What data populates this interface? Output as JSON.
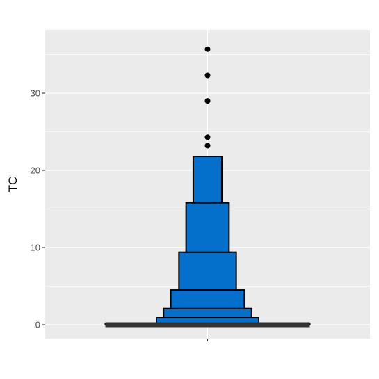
{
  "chart_data": {
    "type": "letter-value boxplot",
    "title": "",
    "xlabel": "",
    "ylabel": "TC",
    "ylim": [
      -1.8,
      38.2
    ],
    "yticks": [
      0,
      10,
      20,
      30
    ],
    "ytick_labels": [
      "0",
      "10",
      "20",
      "30"
    ],
    "grid": true,
    "legend": "none",
    "boxes": [
      {
        "level": 1,
        "lower": 0.0,
        "upper": 0.18,
        "half_width": 1.0
      },
      {
        "level": 2,
        "lower": 0.18,
        "upper": 0.9,
        "half_width": 0.5
      },
      {
        "level": 3,
        "lower": 0.9,
        "upper": 2.1,
        "half_width": 0.43
      },
      {
        "level": 4,
        "lower": 2.1,
        "upper": 4.5,
        "half_width": 0.36
      },
      {
        "level": 5,
        "lower": 4.5,
        "upper": 9.4,
        "half_width": 0.28
      },
      {
        "level": 6,
        "lower": 9.4,
        "upper": 15.8,
        "half_width": 0.21
      },
      {
        "level": 7,
        "lower": 15.8,
        "upper": 21.8,
        "half_width": 0.14
      }
    ],
    "median": 0.0,
    "outliers": [
      23.2,
      24.3,
      29.0,
      32.3,
      35.7
    ],
    "colors": {
      "fill": "#0570CC",
      "outline": "#000000",
      "panel": "#EBEBEB",
      "grid": "#FFFFFF",
      "median": "#333333",
      "outlier": "#000000"
    }
  }
}
